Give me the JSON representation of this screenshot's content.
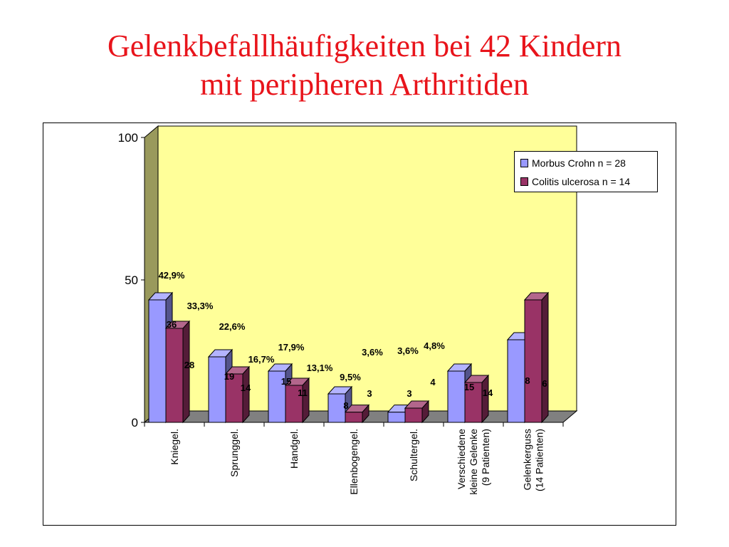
{
  "slide": {
    "title_line1": "Gelenkbefallhäufigkeiten bei 42 Kindern",
    "title_line2": "mit peripheren Arthritiden"
  },
  "colors": {
    "title": "#e8141b",
    "wall": "#ffff99",
    "floor": "#808080",
    "series1": "#9999ff",
    "series2": "#993366"
  },
  "chart_data": {
    "type": "bar",
    "three_d": true,
    "categories": [
      "Kniegel.",
      "Sprunggel.",
      "Handgel.",
      "Ellenbogengel.",
      "Schultergel.",
      "Verschiedene\nkleine Gelenke\n(9 Patienten)",
      "Gelenkerguss\n(14 Patienten)"
    ],
    "ylim": [
      0,
      100
    ],
    "yticks": [
      0,
      50,
      100
    ],
    "grid": false,
    "legend_position": "top-right",
    "series": [
      {
        "name": "Morbus Crohn n = 28",
        "values": [
          43,
          23,
          18,
          10,
          3.6,
          18,
          29
        ],
        "count_labels": [
          "36",
          "19",
          "15",
          "8",
          "3",
          "15",
          "8"
        ],
        "percent_labels": [
          "42,9%",
          "22,6%",
          "17,9%",
          "9,5%",
          "3,6%",
          "",
          ""
        ]
      },
      {
        "name": "Colitis ulcerosa n = 14",
        "values": [
          33,
          17,
          13,
          3.6,
          5,
          14,
          43
        ],
        "count_labels": [
          "28",
          "14",
          "11",
          "3",
          "4",
          "14",
          "6"
        ],
        "percent_labels": [
          "33,3%",
          "16,7%",
          "13,1%",
          "3,6%",
          "4,8%",
          "",
          ""
        ]
      }
    ]
  }
}
